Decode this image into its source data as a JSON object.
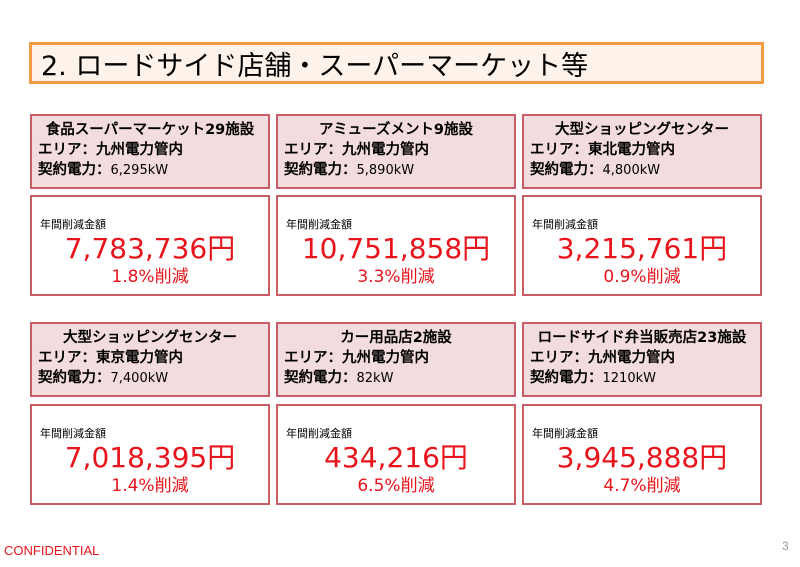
{
  "title": "2. ロードサイド店舗・スーパーマーケット等",
  "cards": [
    {
      "name": "食品スーパーマーケット29施設",
      "area_label": "エリア：",
      "area": "九州電力管内",
      "power_label": "契約電力：",
      "power": "6,295kW",
      "savings_label": "年間削減金額",
      "amount": "7,783,736円",
      "pct": "1.8%削減"
    },
    {
      "name": "アミューズメント9施設",
      "area_label": "エリア：",
      "area": "九州電力管内",
      "power_label": "契約電力：",
      "power": "5,890kW",
      "savings_label": "年間削減金額",
      "amount": "10,751,858円",
      "pct": "3.3%削減"
    },
    {
      "name": "大型ショッピングセンター",
      "area_label": "エリア：",
      "area": "東北電力管内",
      "power_label": "契約電力：",
      "power": "4,800kW",
      "savings_label": "年間削減金額",
      "amount": "3,215,761円",
      "pct": "0.9%削減"
    },
    {
      "name": "大型ショッピングセンター",
      "area_label": "エリア：",
      "area": "東京電力管内",
      "power_label": "契約電力：",
      "power": "7,400kW",
      "savings_label": "年間削減金額",
      "amount": "7,018,395円",
      "pct": "1.4%削減"
    },
    {
      "name": "カー用品店2施設",
      "area_label": "エリア：",
      "area": "九州電力管内",
      "power_label": "契約電力：",
      "power": "82kW",
      "savings_label": "年間削減金額",
      "amount": "434,216円",
      "pct": "6.5%削減"
    },
    {
      "name": "ロードサイド弁当販売店23施設",
      "area_label": "エリア：",
      "area": "九州電力管内",
      "power_label": "契約電力：",
      "power": "1210kW",
      "savings_label": "年間削減金額",
      "amount": "3,945,888円",
      "pct": "4.7%削減"
    }
  ],
  "footer": {
    "confidential": "CONFIDENTIAL",
    "page_number": "3"
  },
  "colors": {
    "title_border": "#f29a44",
    "card_border": "#c95d66",
    "card_head_bg": "#f3dcdd",
    "accent_red": "#e8141c"
  }
}
